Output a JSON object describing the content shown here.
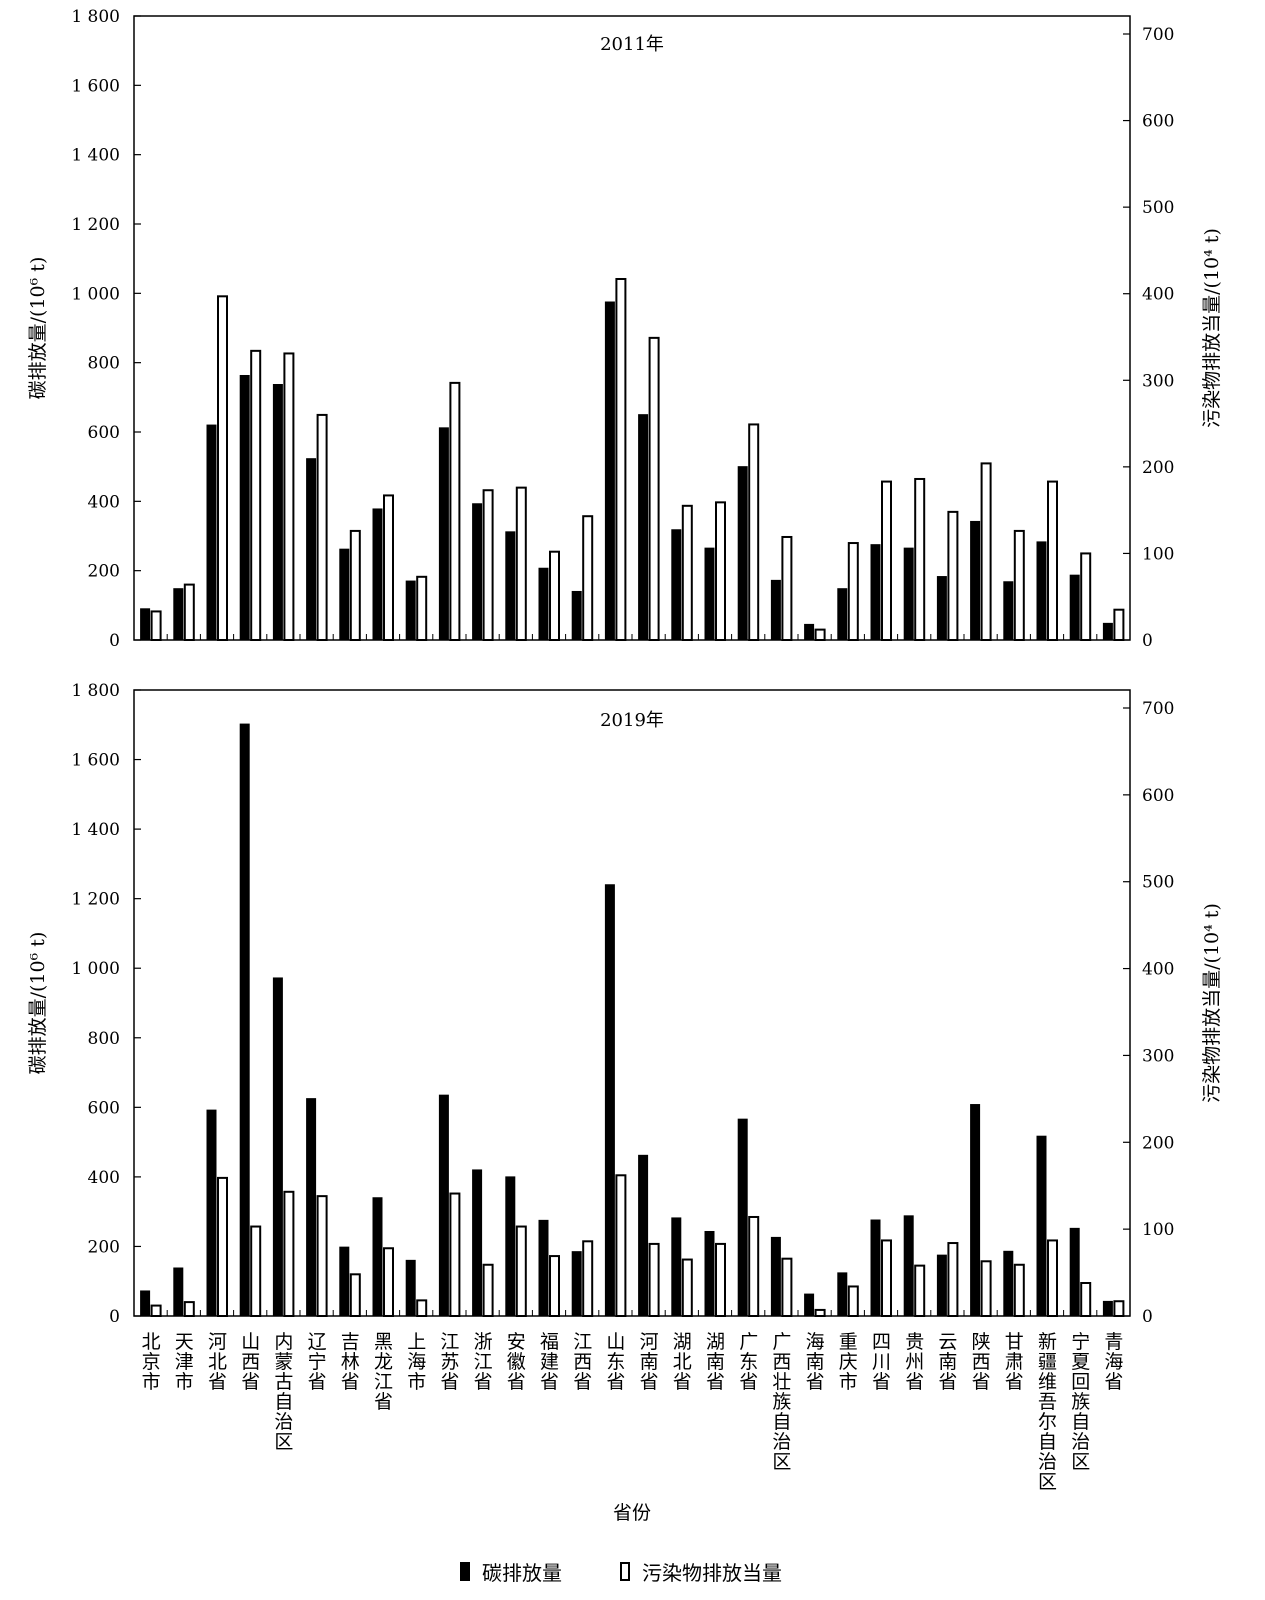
{
  "chart_data": [
    {
      "type": "bar",
      "title": "2011年",
      "ylabel_left": "碳排放量/(10⁶ t)",
      "ylabel_right": "污染物排放当量/(10⁴ t)",
      "ylim_left": [
        0,
        1800
      ],
      "ylim_right": [
        0,
        720
      ],
      "yticks_left": [
        "0",
        "200",
        "400",
        "600",
        "800",
        "1 000",
        "1 200",
        "1 400",
        "1 600",
        "1 800"
      ],
      "yticks_right": [
        "0",
        "100",
        "200",
        "300",
        "400",
        "500",
        "600",
        "700"
      ],
      "series": [
        {
          "name": "碳排放量",
          "axis": "left",
          "values": [
            90,
            148,
            620,
            763,
            737,
            523,
            262,
            378,
            170,
            612,
            393,
            312,
            207,
            140,
            975,
            650,
            318,
            265,
            500,
            172,
            45,
            148,
            275,
            265,
            183,
            342,
            168,
            283,
            187,
            48
          ]
        },
        {
          "name": "污染物排放当量",
          "axis": "right",
          "values": [
            33,
            64,
            397,
            334,
            331,
            260,
            126,
            167,
            73,
            297,
            173,
            176,
            102,
            143,
            417,
            349,
            155,
            159,
            249,
            119,
            12,
            112,
            183,
            186,
            148,
            204,
            126,
            183,
            100,
            35
          ]
        }
      ]
    },
    {
      "type": "bar",
      "title": "2019年",
      "xlabel": "省份",
      "ylabel_left": "碳排放量/(10⁶ t)",
      "ylabel_right": "污染物排放当量/(10⁴ t)",
      "ylim_left": [
        0,
        1800
      ],
      "ylim_right": [
        0,
        720
      ],
      "yticks_left": [
        "0",
        "200",
        "400",
        "600",
        "800",
        "1 000",
        "1 200",
        "1 400",
        "1 600",
        "1 800"
      ],
      "yticks_right": [
        "0",
        "100",
        "200",
        "300",
        "400",
        "500",
        "600",
        "700"
      ],
      "categories": [
        "北京市",
        "天津市",
        "河北省",
        "山西省",
        "内蒙古自治区",
        "辽宁省",
        "吉林省",
        "黑龙江省",
        "上海市",
        "江苏省",
        "浙江省",
        "安徽省",
        "福建省",
        "江西省",
        "山东省",
        "河南省",
        "湖北省",
        "湖南省",
        "广东省",
        "广西壮族自治区",
        "海南省",
        "重庆市",
        "四川省",
        "贵州省",
        "云南省",
        "陕西省",
        "甘肃省",
        "新疆维吾尔自治区",
        "宁夏回族自治区",
        "青海省"
      ],
      "series": [
        {
          "name": "碳排放量",
          "axis": "left",
          "values": [
            72,
            138,
            592,
            1702,
            972,
            625,
            198,
            340,
            160,
            635,
            420,
            400,
            275,
            185,
            1240,
            462,
            282,
            243,
            566,
            226,
            63,
            124,
            276,
            288,
            175,
            608,
            186,
            517,
            252,
            42
          ]
        },
        {
          "name": "污染物排放当量",
          "axis": "right",
          "values": [
            12,
            16,
            159,
            103,
            143,
            138,
            48,
            78,
            18,
            141,
            59,
            103,
            69,
            86,
            162,
            83,
            65,
            83,
            114,
            66,
            7,
            34,
            87,
            58,
            84,
            63,
            59,
            87,
            38,
            17
          ]
        }
      ]
    }
  ],
  "legend": {
    "carbon": "碳排放量",
    "pollutant": "污染物排放当量"
  },
  "colors": {
    "carbon_fill": "#000000",
    "pollutant_fill": "#ffffff",
    "stroke": "#000000"
  }
}
